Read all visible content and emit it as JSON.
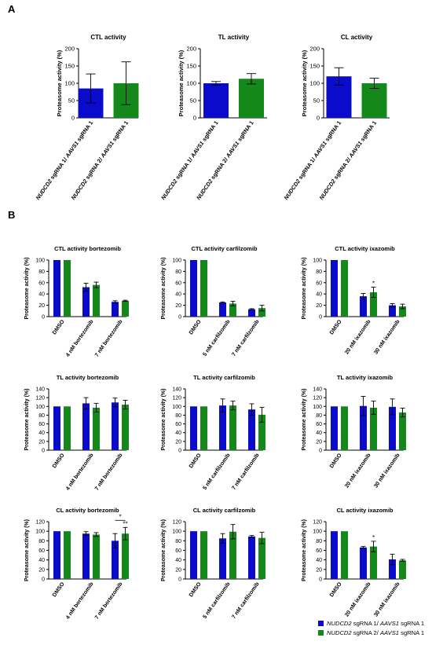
{
  "panels": {
    "a": "A",
    "b": "B"
  },
  "series_colors": {
    "s1": "#0b0bcc",
    "s2": "#15881c"
  },
  "y_axis_label": "Proteasome activity (%)",
  "legend": [
    {
      "gene": "NUDCD2",
      "mid": " sgRNA 1/ ",
      "ctrl": "AAVS1",
      "tail": " sgRNA 1",
      "color": "#0b0bcc"
    },
    {
      "gene": "NUDCD2",
      "mid": " sgRNA 2/ ",
      "ctrl": "AAVS1",
      "tail": " sgRNA 1",
      "color": "#15881c"
    }
  ],
  "chart_data": [
    {
      "type": "bar",
      "title": "CTL activity",
      "categories": [
        [
          "NUDCD2",
          " sgRNA 1/ ",
          "AAVS1",
          " sgRNA 1"
        ],
        [
          "NUDCD2",
          " sgRNA 2/ ",
          "AAVS1",
          " sgRNA 1"
        ]
      ],
      "values": [
        85,
        100
      ],
      "errors": [
        42,
        62
      ],
      "colors": [
        "#0b0bcc",
        "#15881c"
      ],
      "ylim": [
        0,
        200
      ],
      "yticks": [
        0,
        50,
        100,
        150,
        200
      ],
      "annotations": []
    },
    {
      "type": "bar",
      "title": "TL activity",
      "categories": [
        [
          "NUDCD2",
          " sgRNA 1/ ",
          "AAVS1",
          " sgRNA 1"
        ],
        [
          "NUDCD2",
          " sgRNA 2/ ",
          "AAVS1",
          " sgRNA 1"
        ]
      ],
      "values": [
        100,
        113
      ],
      "errors": [
        5,
        15
      ],
      "colors": [
        "#0b0bcc",
        "#15881c"
      ],
      "ylim": [
        0,
        200
      ],
      "yticks": [
        0,
        50,
        100,
        150,
        200
      ],
      "annotations": []
    },
    {
      "type": "bar",
      "title": "CL activity",
      "categories": [
        [
          "NUDCD2",
          " sgRNA 1/ ",
          "AAVS1",
          " sgRNA 1"
        ],
        [
          "NUDCD2",
          " sgRNA 2/ ",
          "AAVS1",
          " sgRNA 1"
        ]
      ],
      "values": [
        120,
        100
      ],
      "errors": [
        25,
        15
      ],
      "colors": [
        "#0b0bcc",
        "#15881c"
      ],
      "ylim": [
        0,
        200
      ],
      "yticks": [
        0,
        50,
        100,
        150,
        200
      ],
      "annotations": []
    },
    {
      "type": "bar",
      "title": "CTL activity bortezomib",
      "categories": [
        "DMSO",
        "4 nM bortezomib",
        "7 nM bortezomib"
      ],
      "series": [
        {
          "values": [
            100,
            52,
            26
          ],
          "errors": [
            0,
            7,
            2
          ]
        },
        {
          "values": [
            100,
            56,
            28
          ],
          "errors": [
            0,
            5,
            1
          ]
        }
      ],
      "ylim": [
        0,
        100
      ],
      "yticks": [
        0,
        20,
        40,
        60,
        80,
        100
      ],
      "annotations": []
    },
    {
      "type": "bar",
      "title": "CTL activity carfilzomib",
      "categories": [
        "DMSO",
        "5 nM carfilzomib",
        "7 nM carfilzomib"
      ],
      "series": [
        {
          "values": [
            100,
            25,
            13
          ],
          "errors": [
            0,
            1,
            1
          ]
        },
        {
          "values": [
            100,
            23,
            15
          ],
          "errors": [
            0,
            4,
            5
          ]
        }
      ],
      "ylim": [
        0,
        100
      ],
      "yticks": [
        0,
        20,
        40,
        60,
        80,
        100
      ],
      "annotations": []
    },
    {
      "type": "bar",
      "title": "CTL activity ixazomib",
      "categories": [
        "DMSO",
        "20 nM ixazomib",
        "30 nM ixazomib"
      ],
      "series": [
        {
          "values": [
            100,
            36,
            20
          ],
          "errors": [
            0,
            5,
            3
          ]
        },
        {
          "values": [
            100,
            43,
            18
          ],
          "errors": [
            0,
            9,
            4
          ]
        }
      ],
      "ylim": [
        0,
        100
      ],
      "yticks": [
        0,
        20,
        40,
        60,
        80,
        100
      ],
      "annotations": [
        {
          "text": "*",
          "category": 1,
          "series": 1
        }
      ]
    },
    {
      "type": "bar",
      "title": "TL activity bortezomib",
      "categories": [
        "DMSO",
        "4 nM bortezomib",
        "7 nM bortezomib"
      ],
      "series": [
        {
          "values": [
            100,
            107,
            109
          ],
          "errors": [
            0,
            13,
            10
          ]
        },
        {
          "values": [
            100,
            97,
            104
          ],
          "errors": [
            0,
            10,
            10
          ]
        }
      ],
      "ylim": [
        0,
        140
      ],
      "yticks": [
        0,
        20,
        40,
        60,
        80,
        100,
        120,
        140
      ],
      "annotations": []
    },
    {
      "type": "bar",
      "title": "TL activity carfilzomib",
      "categories": [
        "DMSO",
        "5 nM carfilzomib",
        "7 nM carfilzomib"
      ],
      "series": [
        {
          "values": [
            100,
            102,
            93
          ],
          "errors": [
            0,
            15,
            13
          ]
        },
        {
          "values": [
            100,
            102,
            81
          ],
          "errors": [
            0,
            10,
            17
          ]
        }
      ],
      "ylim": [
        0,
        140
      ],
      "yticks": [
        0,
        20,
        40,
        60,
        80,
        100,
        120,
        140
      ],
      "annotations": []
    },
    {
      "type": "bar",
      "title": "TL activity ixazomib",
      "categories": [
        "DMSO",
        "20 nM ixazomib",
        "30 nM ixazomib"
      ],
      "series": [
        {
          "values": [
            100,
            101,
            99
          ],
          "errors": [
            0,
            22,
            18
          ]
        },
        {
          "values": [
            100,
            97,
            86
          ],
          "errors": [
            0,
            15,
            10
          ]
        }
      ],
      "ylim": [
        0,
        140
      ],
      "yticks": [
        0,
        20,
        40,
        60,
        80,
        100,
        120,
        140
      ],
      "annotations": []
    },
    {
      "type": "bar",
      "title": "CL activity bortezomib",
      "categories": [
        "DMSO",
        "4 nM bortezomib",
        "7 nM bortezomib"
      ],
      "series": [
        {
          "values": [
            100,
            95,
            80
          ],
          "errors": [
            0,
            4,
            15
          ]
        },
        {
          "values": [
            100,
            93,
            95
          ],
          "errors": [
            0,
            4,
            13
          ]
        }
      ],
      "ylim": [
        0,
        120
      ],
      "yticks": [
        0,
        20,
        40,
        60,
        80,
        100,
        120
      ],
      "annotations": [
        {
          "text": "**",
          "category": 2,
          "series": 1
        },
        {
          "text": "*",
          "category": 2,
          "bracket": true
        }
      ]
    },
    {
      "type": "bar",
      "title": "CL activity carfilzomib",
      "categories": [
        "DMSO",
        "5 nM carfilzomib",
        "7 nM carfilzomib"
      ],
      "series": [
        {
          "values": [
            100,
            85,
            89
          ],
          "errors": [
            0,
            10,
            2
          ]
        },
        {
          "values": [
            100,
            99,
            86
          ],
          "errors": [
            0,
            15,
            12
          ]
        }
      ],
      "ylim": [
        0,
        120
      ],
      "yticks": [
        0,
        20,
        40,
        60,
        80,
        100,
        120
      ],
      "annotations": []
    },
    {
      "type": "bar",
      "title": "CL activity ixazomib",
      "categories": [
        "DMSO",
        "20 nM ixazomib",
        "30 nM ixazomib"
      ],
      "series": [
        {
          "values": [
            100,
            66,
            41
          ],
          "errors": [
            0,
            2,
            11
          ]
        },
        {
          "values": [
            100,
            68,
            39
          ],
          "errors": [
            0,
            11,
            2
          ]
        }
      ],
      "ylim": [
        0,
        120
      ],
      "yticks": [
        0,
        20,
        40,
        60,
        80,
        100,
        120
      ],
      "annotations": [
        {
          "text": "*",
          "category": 1,
          "series": 1
        }
      ]
    }
  ]
}
